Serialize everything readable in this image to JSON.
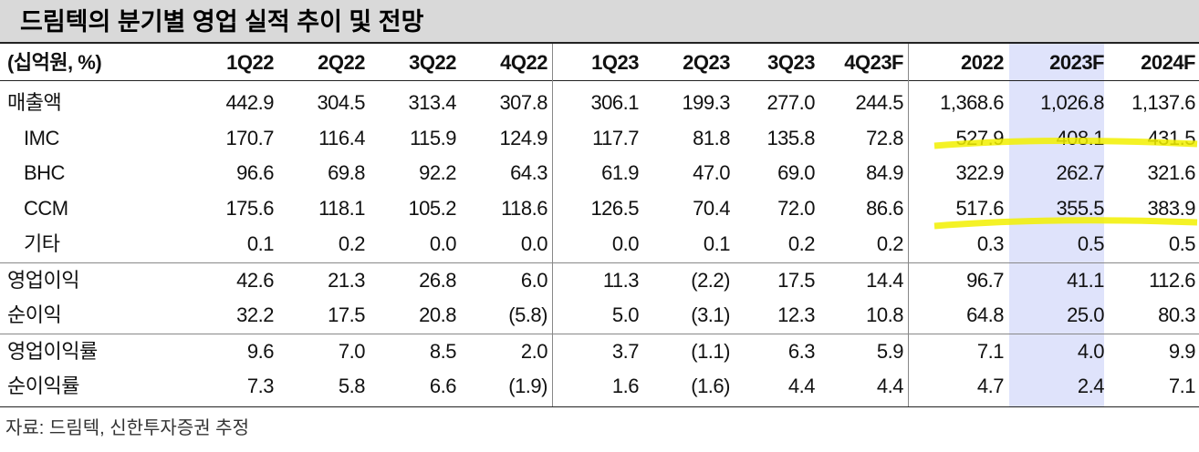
{
  "header": {
    "title": "드림텍의 분기별 영업 실적 추이 및 전망"
  },
  "table": {
    "columns": [
      "(십억원, %)",
      "1Q22",
      "2Q22",
      "3Q22",
      "4Q22",
      "1Q23",
      "2Q23",
      "3Q23",
      "4Q23F",
      "2022",
      "2023F",
      "2024F"
    ],
    "rows": [
      [
        "매출액",
        "442.9",
        "304.5",
        "313.4",
        "307.8",
        "306.1",
        "199.3",
        "277.0",
        "244.5",
        "1,368.6",
        "1,026.8",
        "1,137.6"
      ],
      [
        "IMC",
        "170.7",
        "116.4",
        "115.9",
        "124.9",
        "117.7",
        "81.8",
        "135.8",
        "72.8",
        "527.9",
        "408.1",
        "431.5"
      ],
      [
        "BHC",
        "96.6",
        "69.8",
        "92.2",
        "64.3",
        "61.9",
        "47.0",
        "69.0",
        "84.9",
        "322.9",
        "262.7",
        "321.6"
      ],
      [
        "CCM",
        "175.6",
        "118.1",
        "105.2",
        "118.6",
        "126.5",
        "70.4",
        "72.0",
        "86.6",
        "517.6",
        "355.5",
        "383.9"
      ],
      [
        "기타",
        "0.1",
        "0.2",
        "0.0",
        "0.0",
        "0.0",
        "0.1",
        "0.2",
        "0.2",
        "0.3",
        "0.5",
        "0.5"
      ],
      [
        "영업이익",
        "42.6",
        "21.3",
        "26.8",
        "6.0",
        "11.3",
        "(2.2)",
        "17.5",
        "14.4",
        "96.7",
        "41.1",
        "112.6"
      ],
      [
        "순이익",
        "32.2",
        "17.5",
        "20.8",
        "(5.8)",
        "5.0",
        "(3.1)",
        "12.3",
        "10.8",
        "64.8",
        "25.0",
        "80.3"
      ],
      [
        "영업이익률",
        "9.6",
        "7.0",
        "8.5",
        "2.0",
        "3.7",
        "(1.1)",
        "6.3",
        "5.9",
        "7.1",
        "4.0",
        "9.9"
      ],
      [
        "순이익률",
        "7.3",
        "5.8",
        "6.6",
        "(1.9)",
        "1.6",
        "(1.6)",
        "4.4",
        "4.4",
        "4.7",
        "2.4",
        "7.1"
      ]
    ]
  },
  "footer": {
    "source": "자료: 드림텍, 신한투자증권 추정"
  }
}
